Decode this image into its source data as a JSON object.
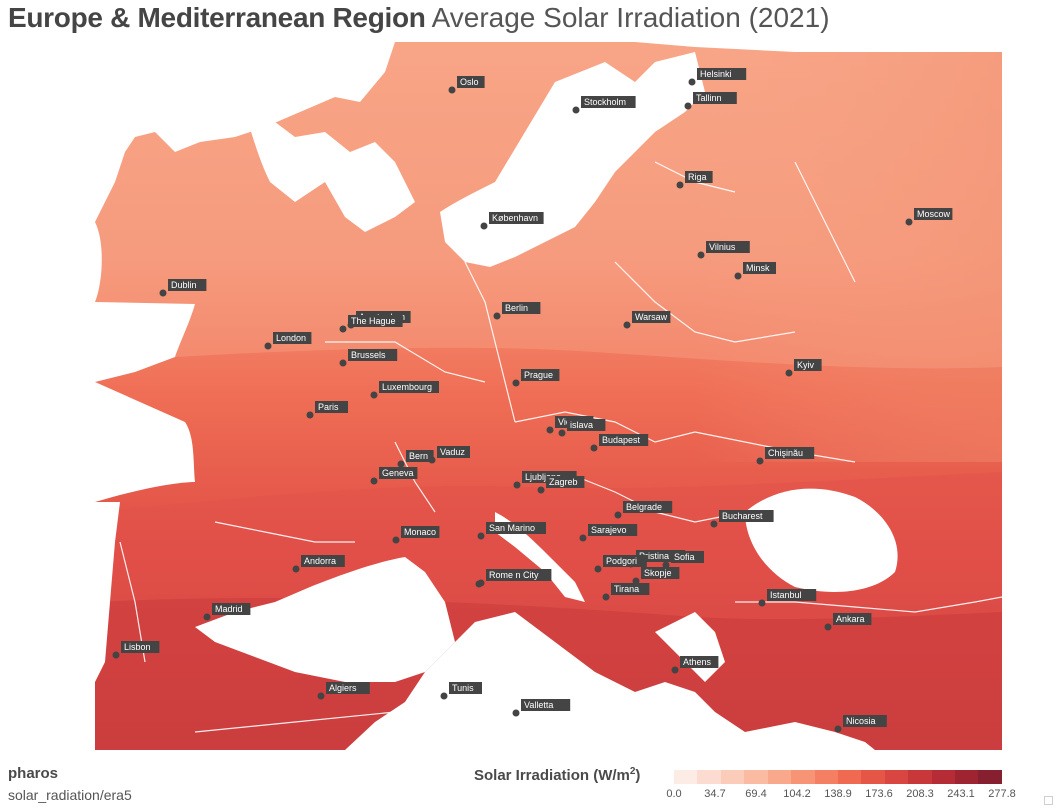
{
  "header": {
    "title_bold": "Europe & Mediterranean Region",
    "title_light": "Average Solar Irradiation (2021)"
  },
  "footer": {
    "brand": "pharos",
    "source": "solar_radiation/era5"
  },
  "legend": {
    "title_prefix": "Solar Irradiation (W/m",
    "title_sup": "2",
    "title_suffix": ")",
    "ticks": [
      "0.0",
      "34.7",
      "69.4",
      "104.2",
      "138.9",
      "173.6",
      "208.3",
      "243.1",
      "277.8"
    ],
    "colors": [
      "#fdece6",
      "#fcdcd0",
      "#fbccb9",
      "#fbbba3",
      "#f9a88c",
      "#f79476",
      "#f47f62",
      "#ef6a51",
      "#e65647",
      "#d94540",
      "#c8373a",
      "#b52c36",
      "#9f2432",
      "#862030"
    ]
  },
  "colors": {
    "land_base": "#f08868",
    "sea": "#ffffff",
    "border": "#ffffff",
    "marker": "#444444",
    "label_bg": "#444444",
    "label_text": "#ffffff"
  },
  "cities": [
    {
      "name": "Oslo"
    },
    {
      "name": "Stockholm"
    },
    {
      "name": "Helsinki"
    },
    {
      "name": "Tallinn"
    },
    {
      "name": "Riga"
    },
    {
      "name": "København"
    },
    {
      "name": "Moscow"
    },
    {
      "name": "Vilnius"
    },
    {
      "name": "Minsk"
    },
    {
      "name": "Dublin"
    },
    {
      "name": "Berlin"
    },
    {
      "name": "Amsterdam"
    },
    {
      "name": "The Hague"
    },
    {
      "name": "Warsaw"
    },
    {
      "name": "London"
    },
    {
      "name": "Brussels"
    },
    {
      "name": "Kyiv"
    },
    {
      "name": "Luxembourg"
    },
    {
      "name": "Prague"
    },
    {
      "name": "Paris"
    },
    {
      "name": "Vienna"
    },
    {
      "name": "Bratislava"
    },
    {
      "name": "Budapest"
    },
    {
      "name": "Chişinău"
    },
    {
      "name": "Bern"
    },
    {
      "name": "Vaduz"
    },
    {
      "name": "Geneva"
    },
    {
      "name": "Ljubljana"
    },
    {
      "name": "Zagreb"
    },
    {
      "name": "Belgrade"
    },
    {
      "name": "Bucharest"
    },
    {
      "name": "Monaco"
    },
    {
      "name": "San Marino"
    },
    {
      "name": "Sarajevo"
    },
    {
      "name": "Andorra"
    },
    {
      "name": "Pristina"
    },
    {
      "name": "Sofia"
    },
    {
      "name": "Podgorica"
    },
    {
      "name": "Skopje"
    },
    {
      "name": "Rome"
    },
    {
      "name": "Vatican City"
    },
    {
      "name": "Tirana"
    },
    {
      "name": "Istanbul"
    },
    {
      "name": "Madrid"
    },
    {
      "name": "Ankara"
    },
    {
      "name": "Lisbon"
    },
    {
      "name": "Athens"
    },
    {
      "name": "Algiers"
    },
    {
      "name": "Tunis"
    },
    {
      "name": "Valletta"
    },
    {
      "name": "Nicosia"
    }
  ]
}
